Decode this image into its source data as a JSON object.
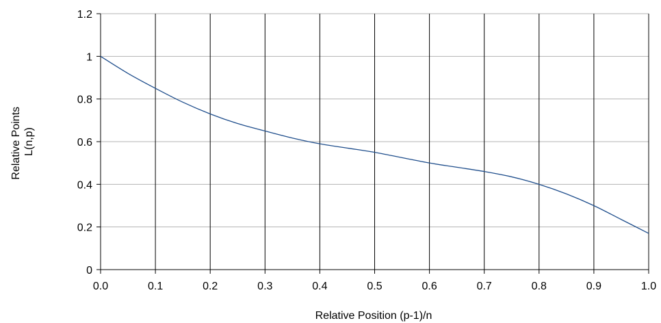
{
  "chart_data": {
    "type": "line",
    "title": "",
    "xlabel": "Relative Position (p-1)/n",
    "ylabel_lines": [
      "Relative Points",
      "L(n,p)"
    ],
    "xlim": [
      0.0,
      1.0
    ],
    "ylim": [
      0,
      1.2
    ],
    "x_ticks": [
      "0.0",
      "0.1",
      "0.2",
      "0.3",
      "0.4",
      "0.5",
      "0.6",
      "0.7",
      "0.8",
      "0.9",
      "1.0"
    ],
    "y_ticks": [
      "0",
      "0.2",
      "0.4",
      "0.6",
      "0.8",
      "1",
      "1.2"
    ],
    "grid": {
      "horizontal": true,
      "vertical": true
    },
    "legend": "none",
    "colors": {
      "line": "#1f4e8c",
      "h_grid": "#b3b3b3",
      "v_grid": "#000000",
      "axis": "#000000"
    },
    "series": [
      {
        "x": [
          0.0,
          0.05,
          0.1,
          0.15,
          0.2,
          0.25,
          0.3,
          0.35,
          0.4,
          0.45,
          0.5,
          0.55,
          0.6,
          0.65,
          0.7,
          0.75,
          0.8,
          0.85,
          0.9,
          0.95,
          1.0
        ],
        "values": [
          1.0,
          0.92,
          0.85,
          0.785,
          0.73,
          0.685,
          0.65,
          0.617,
          0.59,
          0.57,
          0.55,
          0.525,
          0.5,
          0.48,
          0.46,
          0.435,
          0.4,
          0.355,
          0.3,
          0.235,
          0.17
        ]
      }
    ]
  }
}
